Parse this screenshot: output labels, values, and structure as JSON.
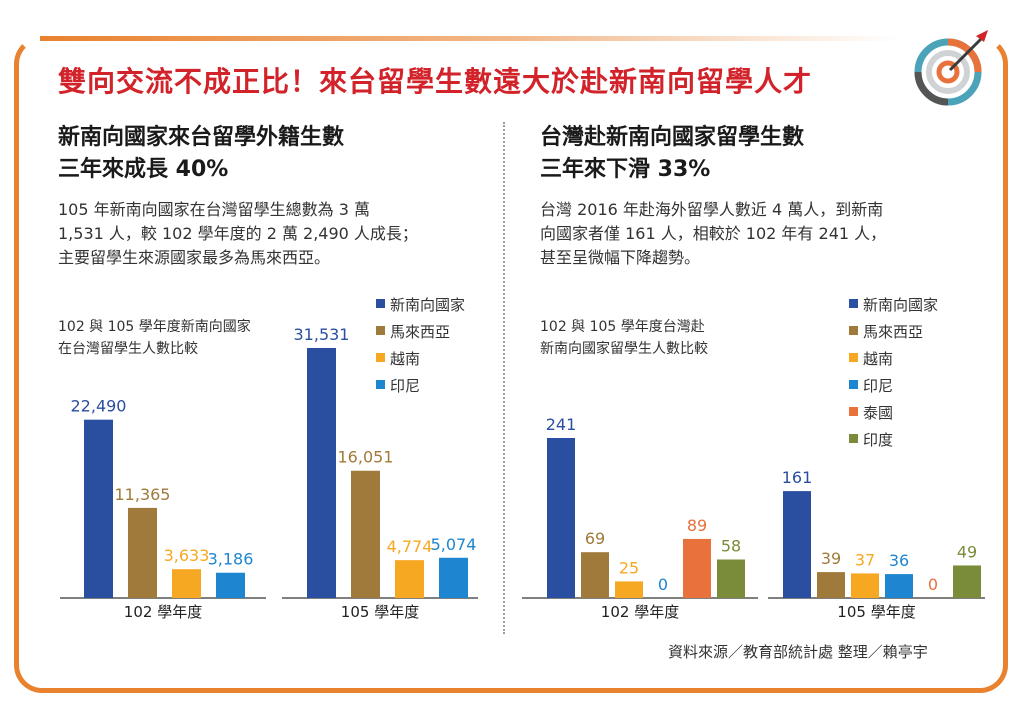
{
  "title": "雙向交流不成正比！來台留學生數遠大於赴新南向留學人才",
  "left": {
    "heading_line1": "新南向國家來台留學外籍生數",
    "heading_line2": "三年來成長 40%",
    "desc_line1": "105 年新南向國家在台灣留學生總數為 3 萬",
    "desc_line2": "1,531 人，較 102 學年度的 2 萬 2,490 人成長；",
    "desc_line3": "主要留學生來源國家最多為馬來西亞。",
    "caption_line1": "102 與 105 學年度新南向國家",
    "caption_line2": "在台灣留學生人數比較"
  },
  "right": {
    "heading_line1": "台灣赴新南向國家留學生數",
    "heading_line2": "三年來下滑 33%",
    "desc_line1": "台灣 2016 年赴海外留學人數近 4 萬人，到新南",
    "desc_line2": "向國家者僅 161 人，相較於 102 年有 241 人，",
    "desc_line3": "甚至呈微幅下降趨勢。",
    "caption_line1": "102 與 105 學年度台灣赴",
    "caption_line2": "新南向國家留學生人數比較"
  },
  "source": "資料來源／教育部統計處  整理／賴亭宇",
  "colors": {
    "新南向國家": "#2a4ea0",
    "馬來西亞": "#a07a3a",
    "越南": "#f7a823",
    "印尼": "#1e86d0",
    "泰國": "#e9713b",
    "印度": "#7a8c3a",
    "accent": "#e9822f",
    "title_red": "#d2232a"
  },
  "chart_data": [
    {
      "type": "bar",
      "title": "102 與 105 學年度新南向國家在台灣留學生人數比較",
      "categories": [
        "102 學年度",
        "105 學年度"
      ],
      "series": [
        {
          "name": "新南向國家",
          "values": [
            22490,
            31531
          ],
          "labels": [
            "22,490",
            "31,531"
          ]
        },
        {
          "name": "馬來西亞",
          "values": [
            11365,
            16051
          ],
          "labels": [
            "11,365",
            "16,051"
          ]
        },
        {
          "name": "越南",
          "values": [
            3633,
            4774
          ],
          "labels": [
            "3,633",
            "4,774"
          ]
        },
        {
          "name": "印尼",
          "values": [
            3186,
            5074
          ],
          "labels": [
            "3,186",
            "5,074"
          ]
        }
      ],
      "legend": "top-right"
    },
    {
      "type": "bar",
      "title": "102 與 105 學年度台灣赴新南向國家留學生人數比較",
      "categories": [
        "102 學年度",
        "105 學年度"
      ],
      "series": [
        {
          "name": "新南向國家",
          "values": [
            241,
            161
          ],
          "labels": [
            "241",
            "161"
          ]
        },
        {
          "name": "馬來西亞",
          "values": [
            69,
            39
          ],
          "labels": [
            "69",
            "39"
          ]
        },
        {
          "name": "越南",
          "values": [
            25,
            37
          ],
          "labels": [
            "25",
            "37"
          ]
        },
        {
          "name": "印尼",
          "values": [
            0,
            36
          ],
          "labels": [
            "0",
            "36"
          ]
        },
        {
          "name": "泰國",
          "values": [
            89,
            0
          ],
          "labels": [
            "89",
            "0"
          ]
        },
        {
          "name": "印度",
          "values": [
            58,
            49
          ],
          "labels": [
            "58",
            "49"
          ]
        }
      ],
      "legend": "top-right"
    }
  ]
}
